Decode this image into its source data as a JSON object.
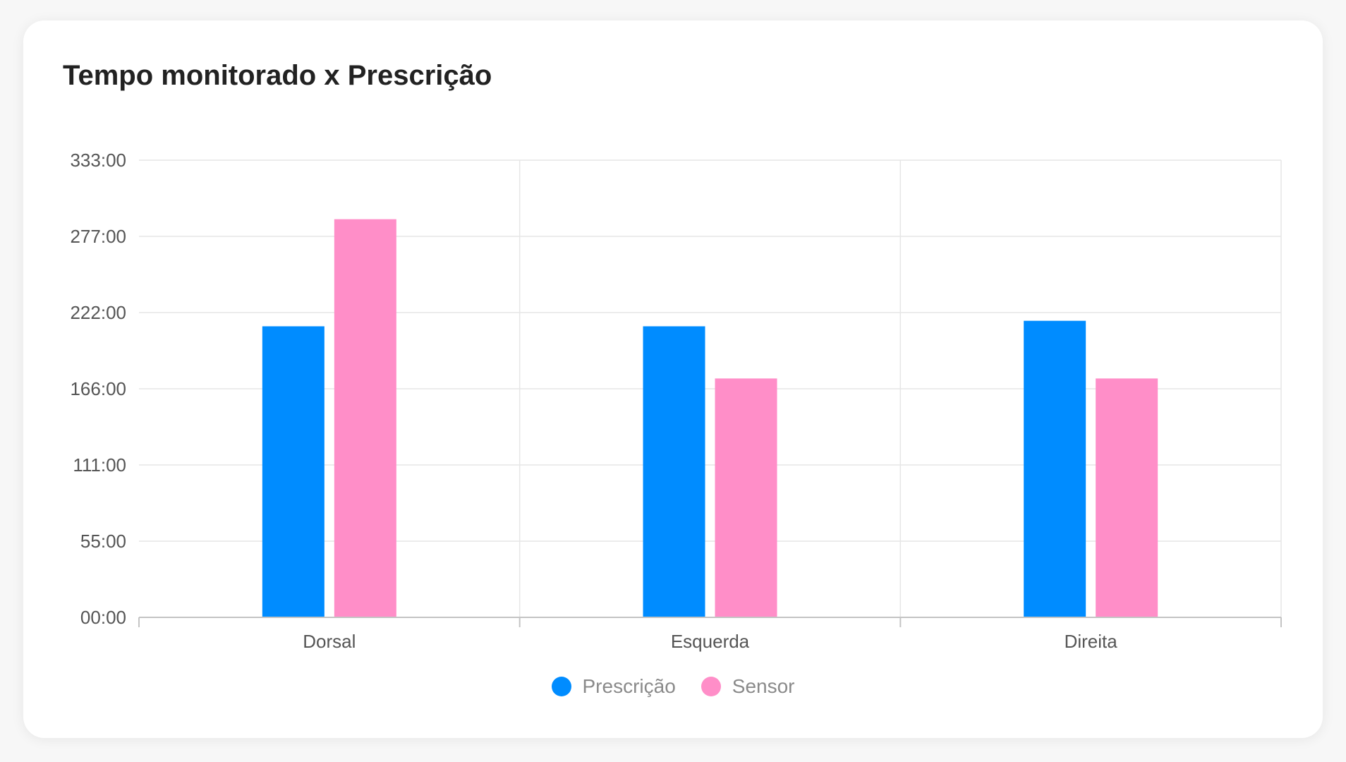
{
  "card": {
    "title": "Tempo monitorado x Prescrição"
  },
  "legend": [
    {
      "name": "Prescrição",
      "color": "#008cff"
    },
    {
      "name": "Sensor",
      "color": "#ff8ec8"
    }
  ],
  "chart_data": {
    "type": "bar",
    "title": "Tempo monitorado x Prescrição",
    "categories": [
      "Dorsal",
      "Esquerda",
      "Direita"
    ],
    "series": [
      {
        "name": "Prescrição",
        "color": "#008cff",
        "values": [
          212,
          212,
          216
        ]
      },
      {
        "name": "Sensor",
        "color": "#ff8ec8",
        "values": [
          290,
          174,
          174
        ]
      }
    ],
    "yticks": [
      "333:00",
      "277:00",
      "222:00",
      "166:00",
      "111:00",
      "55:00",
      "00:00"
    ],
    "ylim": [
      0,
      333
    ],
    "grid": true,
    "legend_position": "bottom"
  }
}
